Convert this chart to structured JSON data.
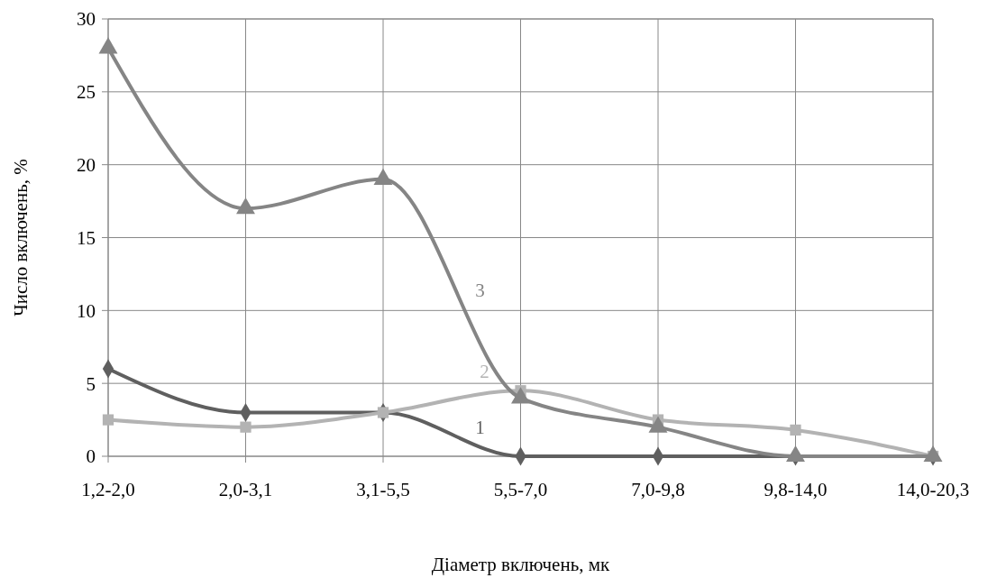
{
  "chart_data": {
    "type": "line",
    "xlabel": "Діаметр включень, мк",
    "ylabel": "Число включень, %",
    "categories": [
      "1,2-2,0",
      "2,0-3,1",
      "3,1-5,5",
      "5,5-7,0",
      "7,0-9,8",
      "9,8-14,0",
      "14,0-20,3"
    ],
    "ylim": [
      0,
      30
    ],
    "yticks": [
      0,
      5,
      10,
      15,
      20,
      25,
      30
    ],
    "grid": true,
    "line_style": "solid",
    "series": [
      {
        "name": "1",
        "color": "#5f5f5f",
        "marker": "diamond",
        "values": [
          6,
          3,
          3,
          0,
          0,
          0,
          0
        ]
      },
      {
        "name": "2",
        "color": "#b3b3b3",
        "marker": "square",
        "values": [
          2.5,
          2,
          3,
          4.5,
          2.5,
          1.8,
          0
        ]
      },
      {
        "name": "3",
        "color": "#858585",
        "marker": "triangle",
        "values": [
          28,
          17,
          19,
          4,
          2,
          0,
          0
        ]
      }
    ]
  }
}
